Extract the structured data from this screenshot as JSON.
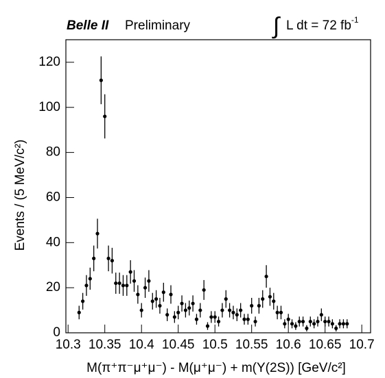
{
  "chart_data": {
    "type": "errorbar",
    "title": "Belle II",
    "subtitle": "Preliminary",
    "lumi_integral": "∫",
    "lumi": "L dt = 72 fb",
    "lumi_exp": "-1",
    "x_label": "M(π⁺π⁻μ⁺μ⁻) - M(μ⁺μ⁻) + m(Υ(2S)) [GeV/c²]",
    "y_label": "Events / (5 MeV/c²)",
    "color": "#000000",
    "x": [
      10.315,
      10.32,
      10.325,
      10.33,
      10.335,
      10.34,
      10.345,
      10.35,
      10.355,
      10.36,
      10.365,
      10.37,
      10.375,
      10.38,
      10.385,
      10.39,
      10.395,
      10.4,
      10.405,
      10.41,
      10.415,
      10.42,
      10.425,
      10.43,
      10.435,
      10.44,
      10.445,
      10.45,
      10.455,
      10.46,
      10.465,
      10.47,
      10.475,
      10.48,
      10.485,
      10.49,
      10.495,
      10.5,
      10.505,
      10.51,
      10.515,
      10.52,
      10.525,
      10.53,
      10.535,
      10.54,
      10.545,
      10.55,
      10.555,
      10.56,
      10.565,
      10.57,
      10.575,
      10.58,
      10.585,
      10.59,
      10.595,
      10.6,
      10.605,
      10.61,
      10.615,
      10.62,
      10.625,
      10.63,
      10.635,
      10.64,
      10.645,
      10.65,
      10.655,
      10.66,
      10.665,
      10.67,
      10.675,
      10.68
    ],
    "values": [
      9,
      14,
      21,
      24,
      33,
      44,
      112,
      96,
      33,
      32,
      22,
      22,
      21,
      21,
      27,
      23,
      17,
      10,
      20,
      23,
      14,
      15,
      12,
      18,
      8,
      17,
      7,
      9,
      13,
      10,
      11,
      13,
      6,
      10,
      19,
      3,
      7,
      7,
      5,
      10,
      15,
      10,
      9,
      8,
      10,
      6,
      6,
      12,
      5,
      12,
      15,
      25,
      16,
      14,
      9,
      9,
      4,
      6,
      4,
      3,
      5,
      5,
      2,
      5,
      4,
      5,
      8,
      5,
      5,
      4,
      2,
      4,
      4,
      4
    ],
    "errors": [
      3,
      3.7,
      4.6,
      4.9,
      5.7,
      6.6,
      10.6,
      9.8,
      5.7,
      5.7,
      4.7,
      4.7,
      4.6,
      4.6,
      5.2,
      4.8,
      4.1,
      3.2,
      4.5,
      4.8,
      3.7,
      3.9,
      3.5,
      4.2,
      2.8,
      4.1,
      2.6,
      3,
      3.6,
      3.2,
      3.3,
      3.6,
      2.4,
      3.2,
      4.4,
      1.7,
      2.6,
      2.6,
      2.2,
      3.2,
      3.9,
      3.2,
      3,
      2.8,
      3.2,
      2.4,
      2.4,
      3.5,
      2.2,
      3.5,
      3.9,
      5,
      4,
      3.7,
      3,
      3,
      2,
      2.4,
      2,
      1.7,
      2.2,
      2.2,
      1.4,
      2.2,
      2,
      2.2,
      2.8,
      2.2,
      2.2,
      2,
      1.4,
      2,
      2,
      2
    ],
    "xlim": [
      10.297,
      10.712
    ],
    "ylim": [
      0,
      130
    ],
    "xticks": [
      10.3,
      10.35,
      10.4,
      10.45,
      10.5,
      10.55,
      10.6,
      10.65,
      10.7
    ],
    "yticks": [
      0,
      20,
      40,
      60,
      80,
      100,
      120
    ]
  }
}
